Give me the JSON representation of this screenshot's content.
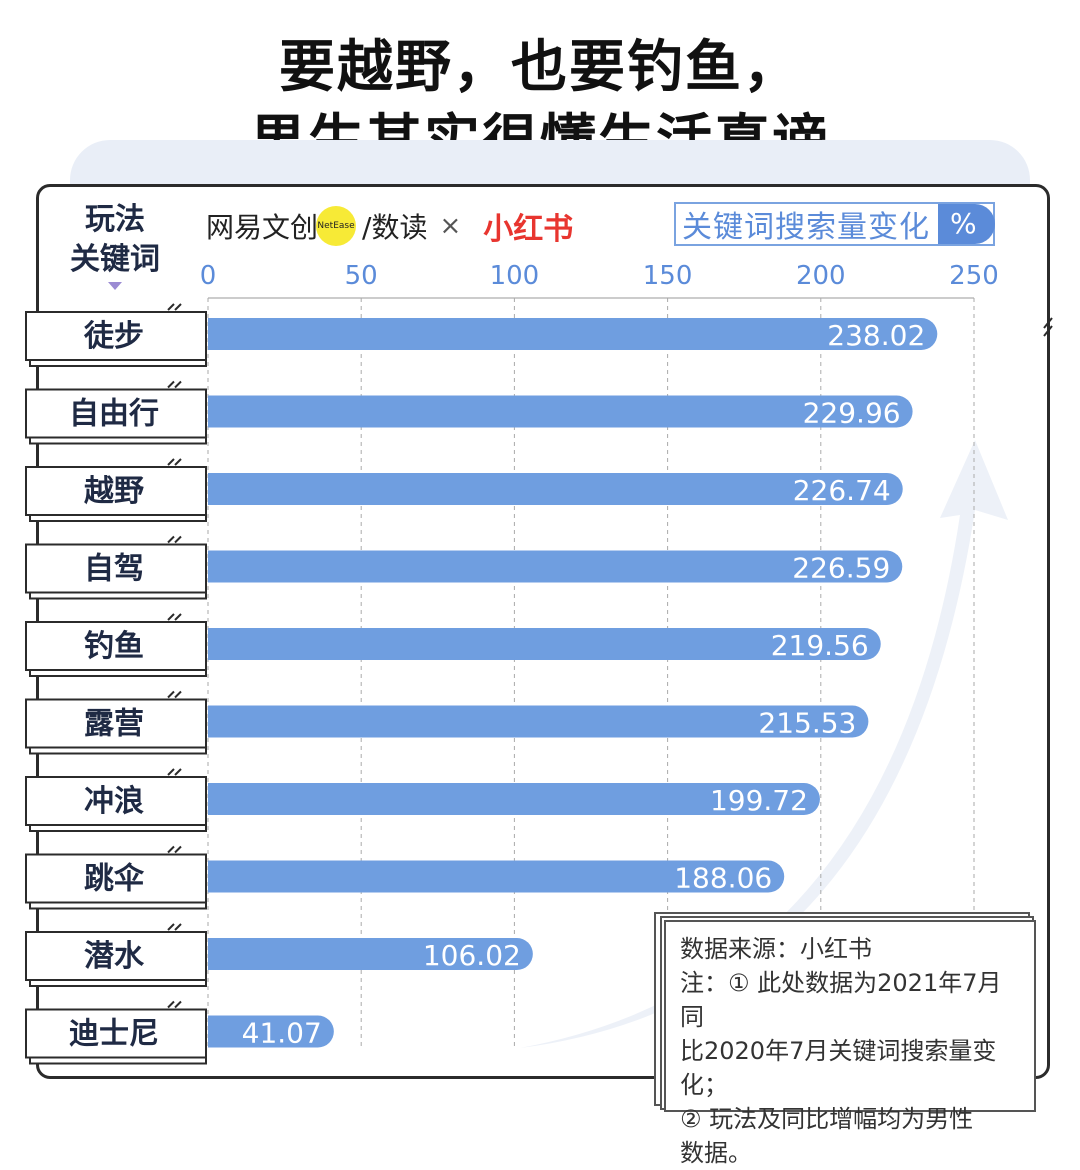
{
  "title": {
    "line1": "要越野，也要钓鱼，",
    "line2": "男生其实很懂生活真谛"
  },
  "axis_title": "玩法\n关键词",
  "brand": {
    "netease": "网易文创",
    "netease_en": "NetEase",
    "shudu": "/数读",
    "cross": "×",
    "xhs": "小红书"
  },
  "legend": {
    "label": "关键词搜索量变化",
    "unit": "%"
  },
  "colors": {
    "bar": "#6f9ee0",
    "accent": "#5b8bd9",
    "brand_red": "#e8352f",
    "brand_yellow": "#f7ea36"
  },
  "note": {
    "source": "数据来源：小红书",
    "line1": "注：① 此处数据为2021年7月同",
    "line2": "比2020年7月关键词搜索量变化；",
    "line3": "② 玩法及同比增幅均为男性",
    "line4": "数据。"
  },
  "chart_data": {
    "type": "bar",
    "orientation": "horizontal",
    "categories": [
      "徒步",
      "自由行",
      "越野",
      "自驾",
      "钓鱼",
      "露营",
      "冲浪",
      "跳伞",
      "潜水",
      "迪士尼"
    ],
    "values": [
      238.02,
      229.96,
      226.74,
      226.59,
      219.56,
      215.53,
      199.72,
      188.06,
      106.02,
      41.07
    ],
    "value_labels": [
      "238.02",
      "229.96",
      "226.74",
      "226.59",
      "219.56",
      "215.53",
      "199.72",
      "188.06",
      "106.02",
      "41.07"
    ],
    "xlim": [
      0,
      250
    ],
    "xticks": [
      "0",
      "50",
      "100",
      "150",
      "200",
      "250"
    ],
    "grid": true
  }
}
